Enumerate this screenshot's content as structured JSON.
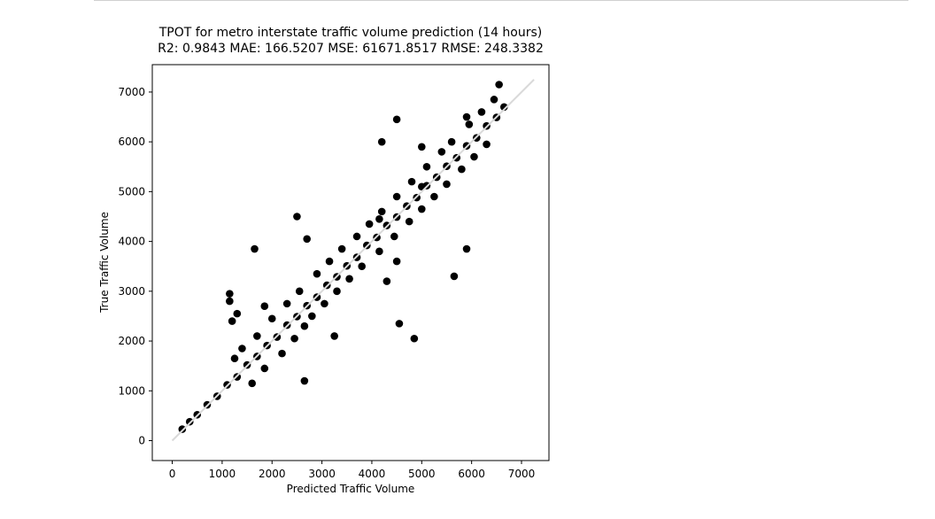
{
  "chart_data": {
    "type": "scatter",
    "title": "TPOT for metro interstate traffic volume prediction (14 hours)",
    "subtitle": "R2: 0.9843 MAE: 166.5207 MSE: 61671.8517 RMSE: 248.3382",
    "xlabel": "Predicted Traffic Volume",
    "ylabel": "True Traffic Volume",
    "xlim": [
      -400,
      7550
    ],
    "ylim": [
      -400,
      7550
    ],
    "x_ticks": [
      0,
      1000,
      2000,
      3000,
      4000,
      5000,
      6000,
      7000
    ],
    "y_ticks": [
      0,
      1000,
      2000,
      3000,
      4000,
      5000,
      6000,
      7000
    ],
    "x_tick_labels": [
      "0",
      "1000",
      "2000",
      "3000",
      "4000",
      "5000",
      "6000",
      "7000"
    ],
    "y_tick_labels": [
      "0",
      "1000",
      "2000",
      "3000",
      "4000",
      "5000",
      "6000",
      "7000"
    ],
    "grid": false,
    "marker_color": "#000000",
    "reference_line": {
      "x": [
        0,
        7250
      ],
      "y": [
        0,
        7250
      ],
      "color": "#d9d9d9"
    },
    "series": [
      {
        "values_x": [
          200,
          350,
          500,
          700,
          900,
          1100,
          1300,
          1500,
          1700,
          1900,
          2100,
          2300,
          2500,
          2700,
          2900,
          3100,
          3300,
          3500,
          3700,
          3900,
          4100,
          4300,
          4500,
          4700,
          4900,
          5100,
          5300,
          5500,
          5700,
          5900,
          6100,
          6300,
          6500,
          6650,
          1600,
          1850,
          2200,
          2450,
          2650,
          2800,
          3050,
          3300,
          3550,
          3800,
          4150,
          4450,
          4750,
          5000,
          5250,
          5500,
          5800,
          6050,
          6300,
          1250,
          1400,
          1700,
          2000,
          2300,
          2550,
          2900,
          3150,
          3400,
          3700,
          3950,
          4200,
          4500,
          4800,
          5100,
          5400,
          5600,
          5950,
          6200,
          6450,
          1150,
          1150,
          1300,
          1200,
          1650,
          2700,
          4850,
          5650,
          4300,
          4500,
          3250,
          2650,
          4150,
          4500,
          2500,
          1850,
          5000,
          4550,
          4200,
          5900,
          6550,
          5000,
          5900
        ],
        "values_y": [
          230,
          380,
          520,
          720,
          890,
          1120,
          1280,
          1520,
          1690,
          1910,
          2080,
          2320,
          2490,
          2710,
          2880,
          3120,
          3290,
          3510,
          3680,
          3920,
          4080,
          4320,
          4490,
          4710,
          4880,
          5120,
          5290,
          5510,
          5680,
          5920,
          6080,
          6320,
          6490,
          6700,
          1150,
          1450,
          1750,
          2050,
          2300,
          2500,
          2750,
          3000,
          3250,
          3500,
          3800,
          4100,
          4400,
          4650,
          4900,
          5150,
          5450,
          5700,
          5950,
          1650,
          1850,
          2100,
          2450,
          2750,
          3000,
          3350,
          3600,
          3850,
          4100,
          4350,
          4600,
          4900,
          5200,
          5500,
          5800,
          6000,
          6350,
          6600,
          6850,
          2950,
          2800,
          2550,
          2400,
          3850,
          4050,
          2050,
          3300,
          3200,
          3600,
          2100,
          1200,
          4450,
          6450,
          4500,
          2700,
          5100,
          2350,
          6000,
          3850,
          7150,
          5900,
          6500
        ]
      }
    ]
  }
}
